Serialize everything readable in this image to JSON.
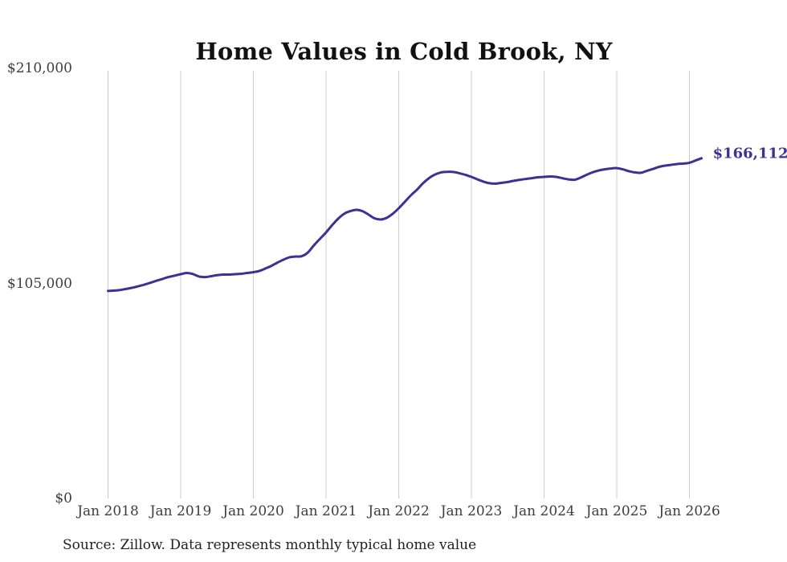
{
  "page": {
    "title": "Home Values in Cold Brook, NY",
    "source_note": "Source: Zillow. Data represents monthly typical home value"
  },
  "colors": {
    "line": "#3b3291",
    "end_label": "#3b3291",
    "gridline": "#cccccc",
    "axis_text": "#3d3d3d",
    "title_text": "#111111"
  },
  "chart_data": {
    "type": "line",
    "title": "Home Values in Cold Brook, NY",
    "grid": "vertical",
    "legend_position": "none",
    "ylim": [
      0,
      210000
    ],
    "y_ticks": [
      {
        "value": 0,
        "label": "$0"
      },
      {
        "value": 105000,
        "label": "$105,000"
      },
      {
        "value": 210000,
        "label": "$210,000"
      }
    ],
    "x_tick_labels": [
      "Jan 2018",
      "Jan 2019",
      "Jan 2020",
      "Jan 2021",
      "Jan 2022",
      "Jan 2023",
      "Jan 2024",
      "Jan 2025",
      "Jan 2026"
    ],
    "x_start_month": "2018-01",
    "x_interval": "monthly",
    "end_label": "$166,112",
    "last_value": 166112,
    "series": [
      {
        "name": "Monthly typical home value",
        "values": [
          101300,
          101500,
          101800,
          102300,
          102900,
          103600,
          104400,
          105300,
          106300,
          107200,
          108100,
          108800,
          109500,
          110100,
          109600,
          108400,
          108100,
          108500,
          109000,
          109300,
          109300,
          109500,
          109700,
          110100,
          110500,
          111100,
          112300,
          113600,
          115200,
          116600,
          117800,
          118100,
          118300,
          120100,
          123600,
          126800,
          129900,
          133400,
          136600,
          139000,
          140300,
          140900,
          140300,
          138600,
          136800,
          136200,
          137000,
          139000,
          141700,
          144800,
          148000,
          150700,
          153900,
          156400,
          158200,
          159200,
          159500,
          159400,
          158800,
          158000,
          157000,
          155800,
          154700,
          153900,
          153700,
          154100,
          154500,
          155100,
          155600,
          156000,
          156400,
          156800,
          157000,
          157200,
          157000,
          156400,
          155800,
          155600,
          156600,
          158000,
          159200,
          160100,
          160700,
          161100,
          161300,
          160700,
          159800,
          159200,
          159000,
          160000,
          160900,
          161900,
          162500,
          162900,
          163300,
          163500,
          163900,
          165000,
          166112
        ]
      }
    ]
  }
}
